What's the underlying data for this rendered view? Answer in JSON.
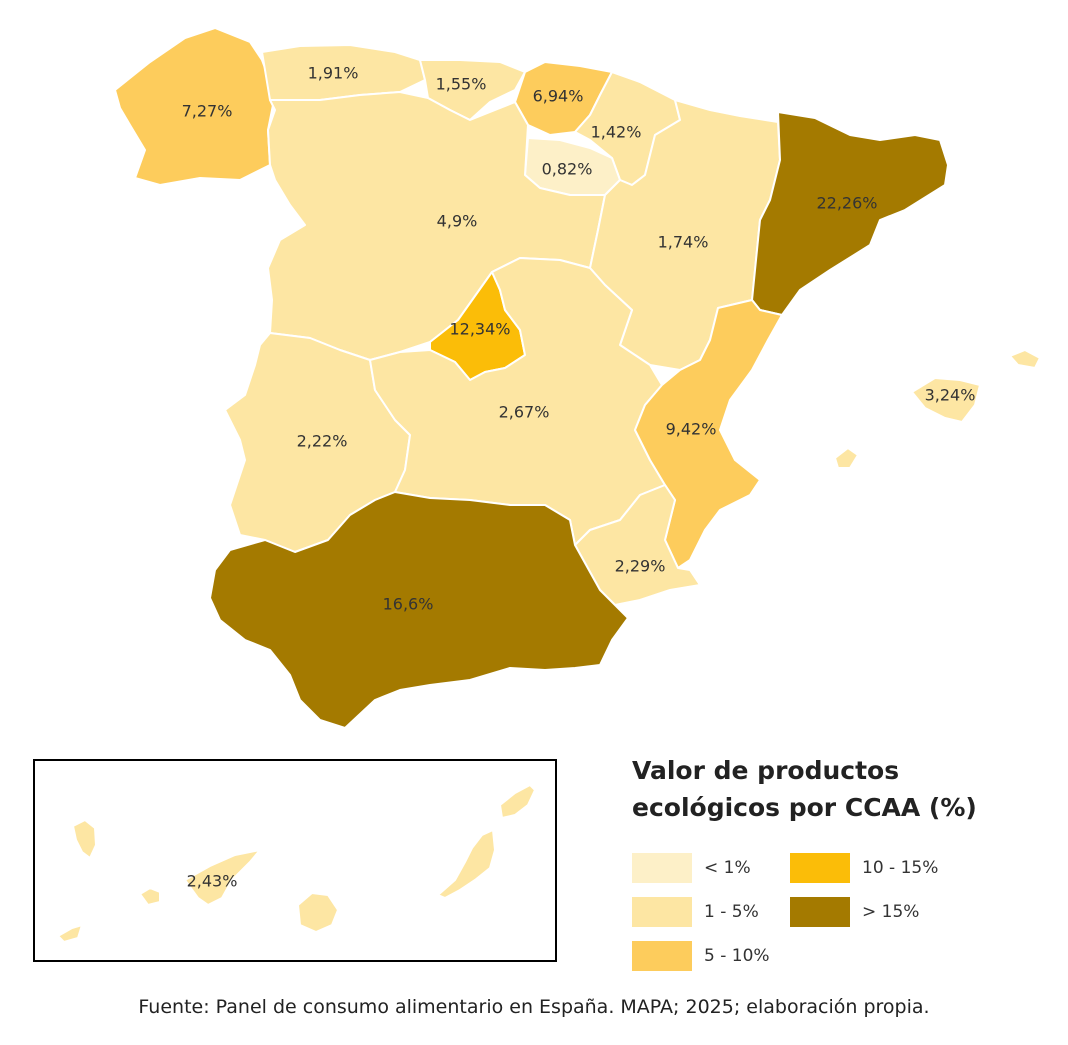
{
  "legend": {
    "title_line1": "Valor de productos",
    "title_line2": "ecológicos por CCAA (%)",
    "classes": [
      {
        "label": "< 1%",
        "color": "#fdf0c8"
      },
      {
        "label": "1 - 5%",
        "color": "#fde6a3"
      },
      {
        "label": "5 - 10%",
        "color": "#fdcc5c"
      },
      {
        "label": "10 - 15%",
        "color": "#fbbd08"
      },
      {
        "label": "> 15%",
        "color": "#a47a00"
      }
    ]
  },
  "source": "Fuente: Panel de consumo alimentario en España. MAPA; 2025; elaboración propia.",
  "regions": {
    "galicia": {
      "value": "7,27%",
      "class": 2
    },
    "asturias": {
      "value": "1,91%",
      "class": 1
    },
    "cantabria": {
      "value": "1,55%",
      "class": 1
    },
    "pais_vasco": {
      "value": "6,94%",
      "class": 2
    },
    "navarra": {
      "value": "1,42%",
      "class": 1
    },
    "la_rioja": {
      "value": "0,82%",
      "class": 0
    },
    "castilla_leon": {
      "value": "4,9%",
      "class": 1
    },
    "aragon": {
      "value": "1,74%",
      "class": 1
    },
    "cataluna": {
      "value": "22,26%",
      "class": 4
    },
    "madrid": {
      "value": "12,34%",
      "class": 3
    },
    "extremadura": {
      "value": "2,22%",
      "class": 1
    },
    "castilla_la_mancha": {
      "value": "2,67%",
      "class": 1
    },
    "valencia": {
      "value": "9,42%",
      "class": 2
    },
    "baleares": {
      "value": "3,24%",
      "class": 1
    },
    "murcia": {
      "value": "2,29%",
      "class": 1
    },
    "andalucia": {
      "value": "16,6%",
      "class": 4
    },
    "canarias": {
      "value": "2,43%",
      "class": 1
    }
  }
}
